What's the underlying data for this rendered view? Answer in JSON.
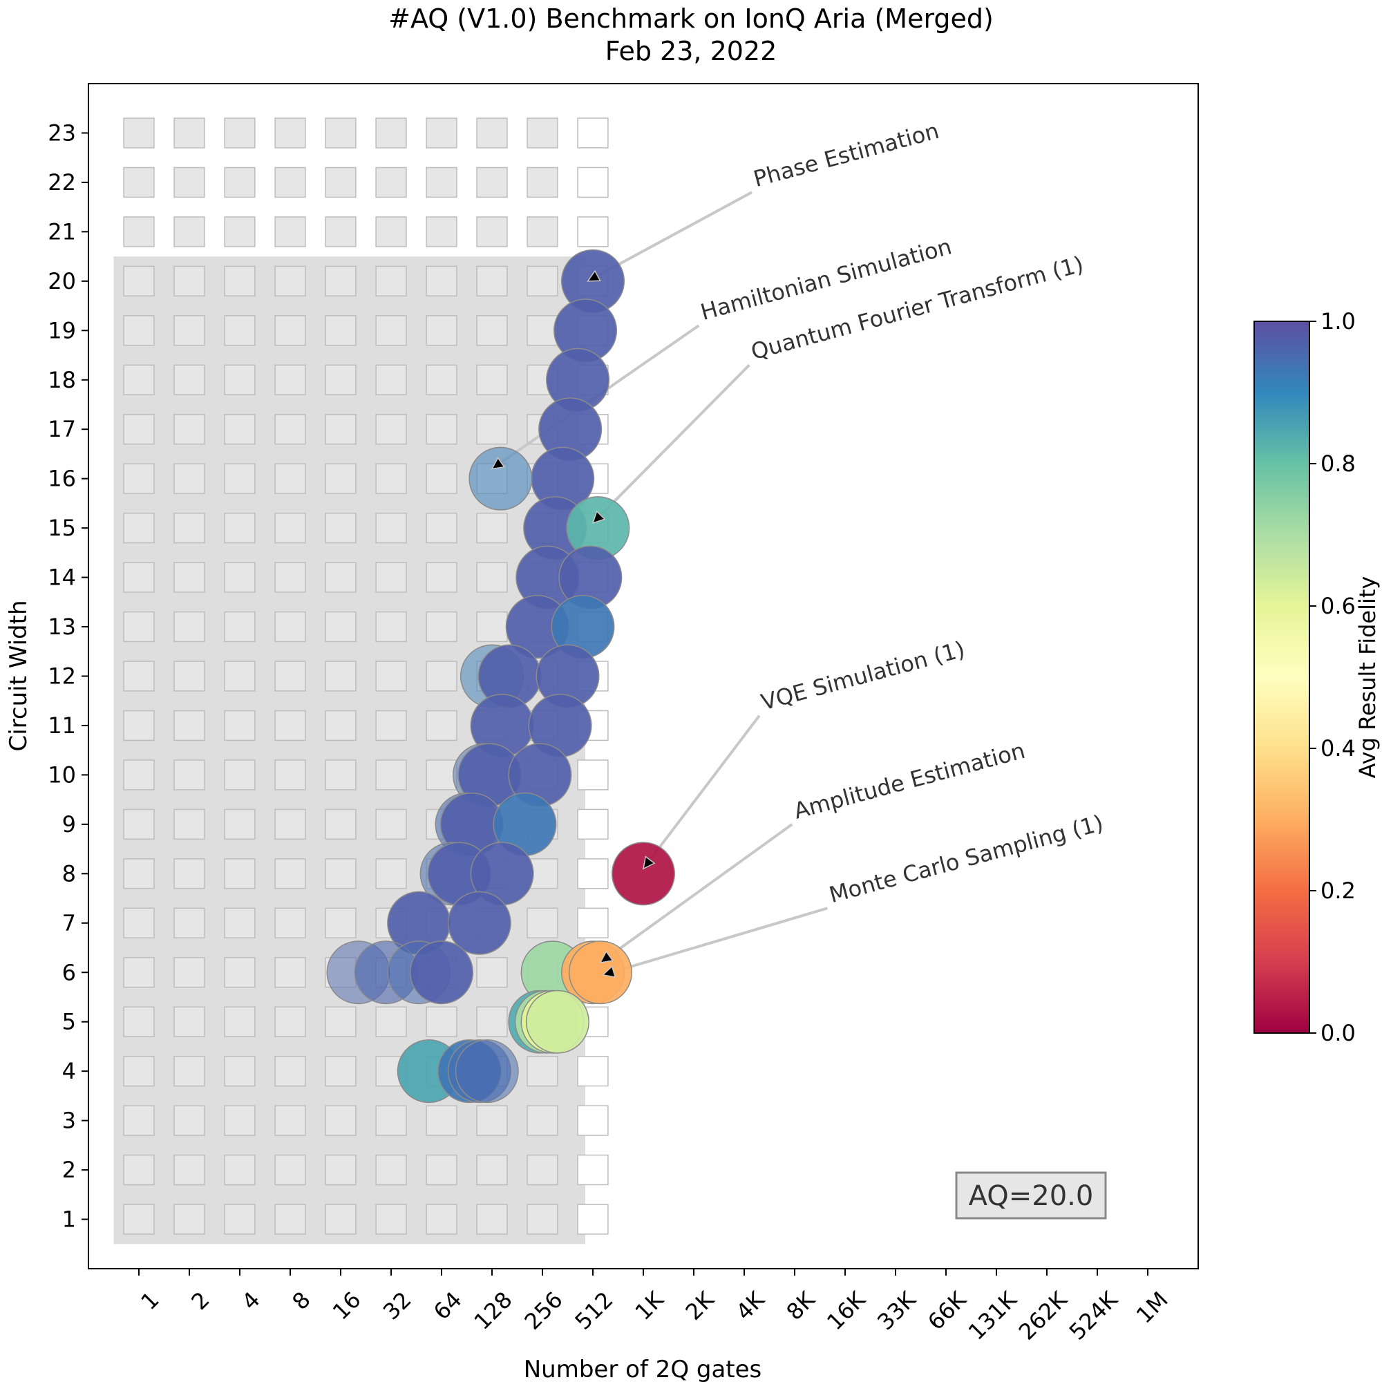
{
  "chart_data": {
    "type": "scatter",
    "title": "#AQ (V1.0) Benchmark on IonQ Aria (Merged)",
    "subtitle": "Feb 23, 2022",
    "xlabel": "Number of 2Q gates",
    "ylabel": "Circuit Width",
    "x_tick_labels": [
      "1",
      "2",
      "4",
      "8",
      "16",
      "32",
      "64",
      "128",
      "256",
      "512",
      "1K",
      "2K",
      "4K",
      "8K",
      "16K",
      "33K",
      "66K",
      "131K",
      "262K",
      "524K",
      "1M"
    ],
    "y_tick_labels": [
      "1",
      "2",
      "3",
      "4",
      "5",
      "6",
      "7",
      "8",
      "9",
      "10",
      "11",
      "12",
      "13",
      "14",
      "15",
      "16",
      "17",
      "18",
      "19",
      "20",
      "21",
      "22",
      "23"
    ],
    "x_scale": "log2",
    "xlim_log2": [
      -1,
      21
    ],
    "ylim": [
      0,
      24
    ],
    "aq_label": "AQ=20.0",
    "aq_value": 20,
    "colorbar": {
      "label": "Avg Result Fidelity",
      "min": 0,
      "max": 1,
      "tick_labels": [
        "0.0",
        "0.2",
        "0.4",
        "0.6",
        "0.8",
        "1.0"
      ]
    },
    "grid_squares": {
      "width_max": 23,
      "depth_log2_max": 9,
      "shaded_region": {
        "width_max": 20,
        "depth_log2_max": 9
      },
      "white_column_log2": 9
    },
    "points": [
      {
        "w": 20,
        "d": 9.0,
        "f": 0.97
      },
      {
        "w": 19,
        "d": 8.85,
        "f": 0.97
      },
      {
        "w": 18,
        "d": 8.7,
        "f": 0.97
      },
      {
        "w": 17,
        "d": 8.55,
        "f": 0.97
      },
      {
        "w": 16,
        "d": 8.4,
        "f": 0.97
      },
      {
        "w": 16,
        "d": 7.17,
        "f": 0.92,
        "a": 0.55
      },
      {
        "w": 15,
        "d": 8.25,
        "f": 0.97
      },
      {
        "w": 15,
        "d": 9.1,
        "f": 0.82
      },
      {
        "w": 14,
        "d": 8.1,
        "f": 0.97
      },
      {
        "w": 14,
        "d": 8.95,
        "f": 0.97
      },
      {
        "w": 13,
        "d": 7.9,
        "f": 0.97
      },
      {
        "w": 13,
        "d": 8.8,
        "f": 0.93
      },
      {
        "w": 12,
        "d": 7.0,
        "f": 0.92,
        "a": 0.5
      },
      {
        "w": 12,
        "d": 7.35,
        "f": 0.97
      },
      {
        "w": 12,
        "d": 8.5,
        "f": 0.97
      },
      {
        "w": 11,
        "d": 7.2,
        "f": 0.97
      },
      {
        "w": 11,
        "d": 8.35,
        "f": 0.97
      },
      {
        "w": 10,
        "d": 6.85,
        "f": 0.95,
        "a": 0.5
      },
      {
        "w": 10,
        "d": 6.95,
        "f": 0.97
      },
      {
        "w": 10,
        "d": 7.95,
        "f": 0.97
      },
      {
        "w": 9,
        "d": 6.5,
        "f": 0.95,
        "a": 0.6
      },
      {
        "w": 9,
        "d": 6.6,
        "f": 0.97
      },
      {
        "w": 9,
        "d": 7.65,
        "f": 0.93
      },
      {
        "w": 8,
        "d": 6.2,
        "f": 0.95,
        "a": 0.55
      },
      {
        "w": 8,
        "d": 6.35,
        "f": 0.97
      },
      {
        "w": 8,
        "d": 7.2,
        "f": 0.97
      },
      {
        "w": 8,
        "d": 10.0,
        "f": 0.03
      },
      {
        "w": 7,
        "d": 5.55,
        "f": 0.97
      },
      {
        "w": 7,
        "d": 6.75,
        "f": 0.97
      },
      {
        "w": 6,
        "d": 4.35,
        "f": 0.96,
        "a": 0.5
      },
      {
        "w": 6,
        "d": 4.9,
        "f": 0.96,
        "a": 0.6
      },
      {
        "w": 6,
        "d": 5.55,
        "f": 0.95,
        "a": 0.55
      },
      {
        "w": 6,
        "d": 6.0,
        "f": 0.97
      },
      {
        "w": 6,
        "d": 8.2,
        "f": 0.72
      },
      {
        "w": 6,
        "d": 9.0,
        "f": 0.3
      },
      {
        "w": 6,
        "d": 9.15,
        "f": 0.3
      },
      {
        "w": 5,
        "d": 7.95,
        "f": 0.84
      },
      {
        "w": 5,
        "d": 8.08,
        "f": 0.7
      },
      {
        "w": 5,
        "d": 8.2,
        "f": 0.6
      },
      {
        "w": 5,
        "d": 8.3,
        "f": 0.64
      },
      {
        "w": 4,
        "d": 5.75,
        "f": 0.85
      },
      {
        "w": 4,
        "d": 6.55,
        "f": 0.93
      },
      {
        "w": 4,
        "d": 6.75,
        "f": 0.95,
        "a": 0.6
      },
      {
        "w": 4,
        "d": 6.9,
        "f": 0.95,
        "a": 0.55
      }
    ],
    "annotations": [
      {
        "text": "Phase Estimation",
        "text_w": 21.8,
        "text_d": 12.15,
        "target_w": 20,
        "target_d": 8.9
      },
      {
        "text": "Hamiltonian Simulation",
        "text_w": 19.1,
        "text_d": 11.1,
        "target_w": 16.2,
        "target_d": 7.0
      },
      {
        "text": "Quantum Fourier Transform (1)",
        "text_w": 18.3,
        "text_d": 12.1,
        "target_w": 15.1,
        "target_d": 9.0
      },
      {
        "text": "VQE Simulation (1)",
        "text_w": 11.2,
        "text_d": 12.3,
        "target_w": 8.1,
        "target_d": 10.0
      },
      {
        "text": "Amplitude Estimation",
        "text_w": 9.0,
        "text_d": 12.95,
        "target_w": 6.2,
        "target_d": 9.15
      },
      {
        "text": "Monte Carlo Sampling (1)",
        "text_w": 7.3,
        "text_d": 13.65,
        "target_w": 5.95,
        "target_d": 9.2
      }
    ]
  }
}
